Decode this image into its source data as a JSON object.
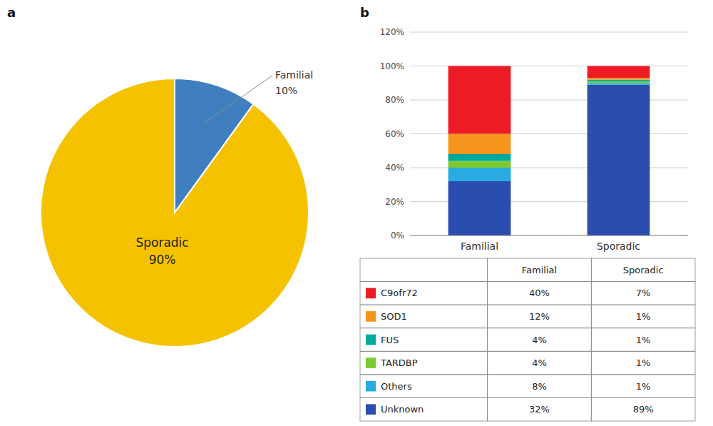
{
  "chart_data": [
    {
      "type": "pie",
      "title": "a",
      "categories": [
        "Familial",
        "Sporadic"
      ],
      "values": [
        10,
        90
      ],
      "value_labels": [
        "10%",
        "90%"
      ],
      "colors": [
        "#3F7FBF",
        "#F5C200"
      ]
    },
    {
      "type": "bar",
      "title": "b",
      "stacked": true,
      "grid": true,
      "categories": [
        "Familial",
        "Sporadic"
      ],
      "series": [
        {
          "name": "Unknown",
          "color": "#2B4DAF",
          "values": [
            32,
            89
          ],
          "value_labels": [
            "32%",
            "89%"
          ]
        },
        {
          "name": "Others",
          "color": "#29ABE2",
          "values": [
            8,
            1
          ],
          "value_labels": [
            "8%",
            "1%"
          ]
        },
        {
          "name": "TARDBP",
          "color": "#7DC932",
          "values": [
            4,
            1
          ],
          "value_labels": [
            "4%",
            "1%"
          ]
        },
        {
          "name": "FUS",
          "color": "#00A99D",
          "values": [
            4,
            1
          ],
          "value_labels": [
            "4%",
            "1%"
          ]
        },
        {
          "name": "SOD1",
          "color": "#F7941D",
          "values": [
            12,
            1
          ],
          "value_labels": [
            "12%",
            "1%"
          ]
        },
        {
          "name": "C9ofr72",
          "color": "#ED1C24",
          "values": [
            40,
            7
          ],
          "value_labels": [
            "40%",
            "7%"
          ]
        }
      ],
      "ylim": [
        0,
        120
      ],
      "yticks": [
        {
          "value": 0,
          "label": "0%"
        },
        {
          "value": 20,
          "label": "20%"
        },
        {
          "value": 40,
          "label": "40%"
        },
        {
          "value": 60,
          "label": "60%"
        },
        {
          "value": 80,
          "label": "80%"
        },
        {
          "value": 100,
          "label": "100%"
        },
        {
          "value": 120,
          "label": "120%"
        }
      ]
    }
  ]
}
